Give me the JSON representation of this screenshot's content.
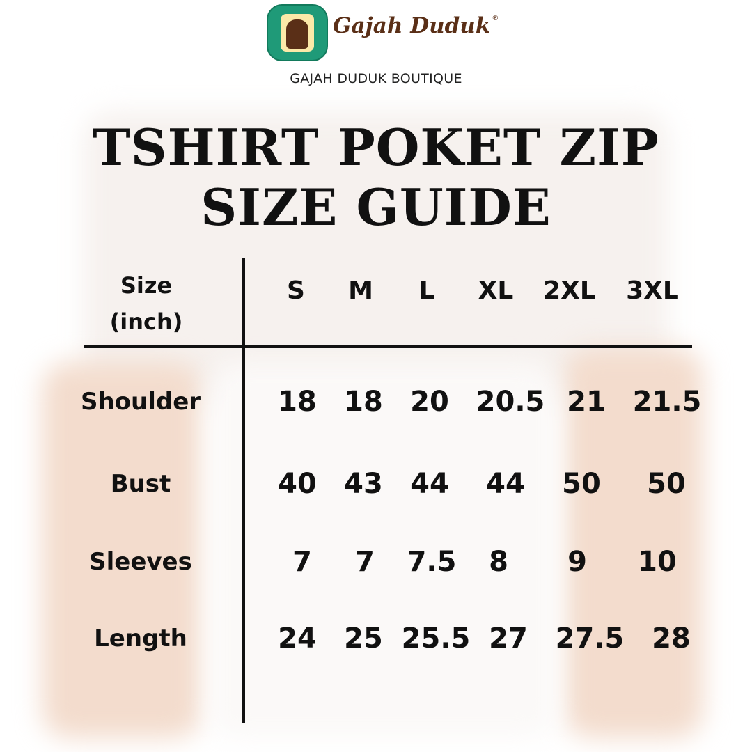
{
  "brand": {
    "name": "Gajah Duduk",
    "registered_mark": "®",
    "subtitle": "GAJAH DUDUK BOUTIQUE",
    "colors": {
      "brown": "#5a2f17",
      "green": "#1f9a78",
      "cream": "#fbe9a8"
    }
  },
  "title": {
    "line1": "TSHIRT POKET ZIP",
    "line2": "SIZE GUIDE"
  },
  "table": {
    "corner_label_line1": "Size",
    "corner_label_line2": "(inch)",
    "columns": [
      "S",
      "M",
      "L",
      "XL",
      "2XL",
      "3XL"
    ],
    "rows": [
      {
        "label": "Shoulder",
        "values": [
          "18",
          "18",
          "20",
          "20.5",
          "21",
          "21.5"
        ]
      },
      {
        "label": "Bust",
        "values": [
          "40",
          "43",
          "44",
          "44",
          "50",
          "50"
        ]
      },
      {
        "label": "Sleeves",
        "values": [
          "7",
          "7",
          "7.5",
          "8",
          "9",
          "10"
        ]
      },
      {
        "label": "Length",
        "values": [
          "24",
          "25",
          "25.5",
          "27",
          "27.5",
          "28"
        ]
      }
    ]
  }
}
